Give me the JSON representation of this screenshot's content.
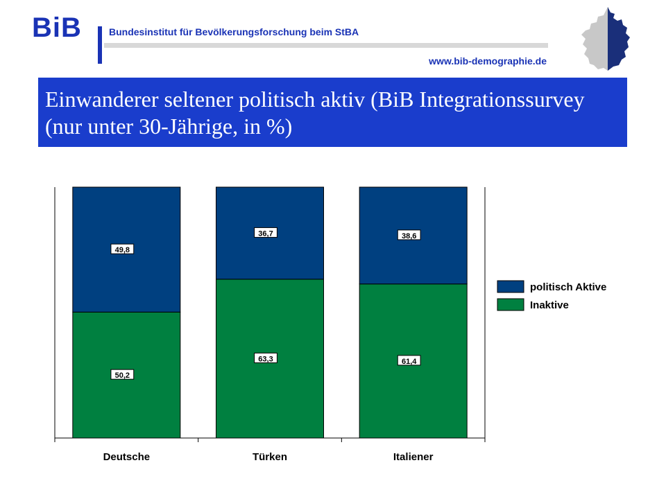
{
  "header": {
    "logo": "BiB",
    "org": "Bundesinstitut für Bevölkerungsforschung beim StBA",
    "url": "www.bib-demographie.de",
    "icon": "germany-map-icon"
  },
  "title": "Einwanderer seltener politisch aktiv (BiB Integrationssurvey (nur unter 30-Jährige, in %)",
  "chart_data": {
    "type": "bar",
    "stacked": true,
    "categories": [
      "Deutsche",
      "Türken",
      "Italiener"
    ],
    "series": [
      {
        "name": "Inaktive",
        "values": [
          50.2,
          63.3,
          61.4
        ],
        "labels": [
          "50,2",
          "63,3",
          "61,4"
        ],
        "color": "#008040"
      },
      {
        "name": "politisch Aktive",
        "values": [
          49.8,
          36.7,
          38.6
        ],
        "labels": [
          "49,8",
          "36,7",
          "38,6"
        ],
        "color": "#004080"
      }
    ],
    "ylim": [
      0,
      100
    ],
    "grid": false,
    "legend": "right"
  }
}
